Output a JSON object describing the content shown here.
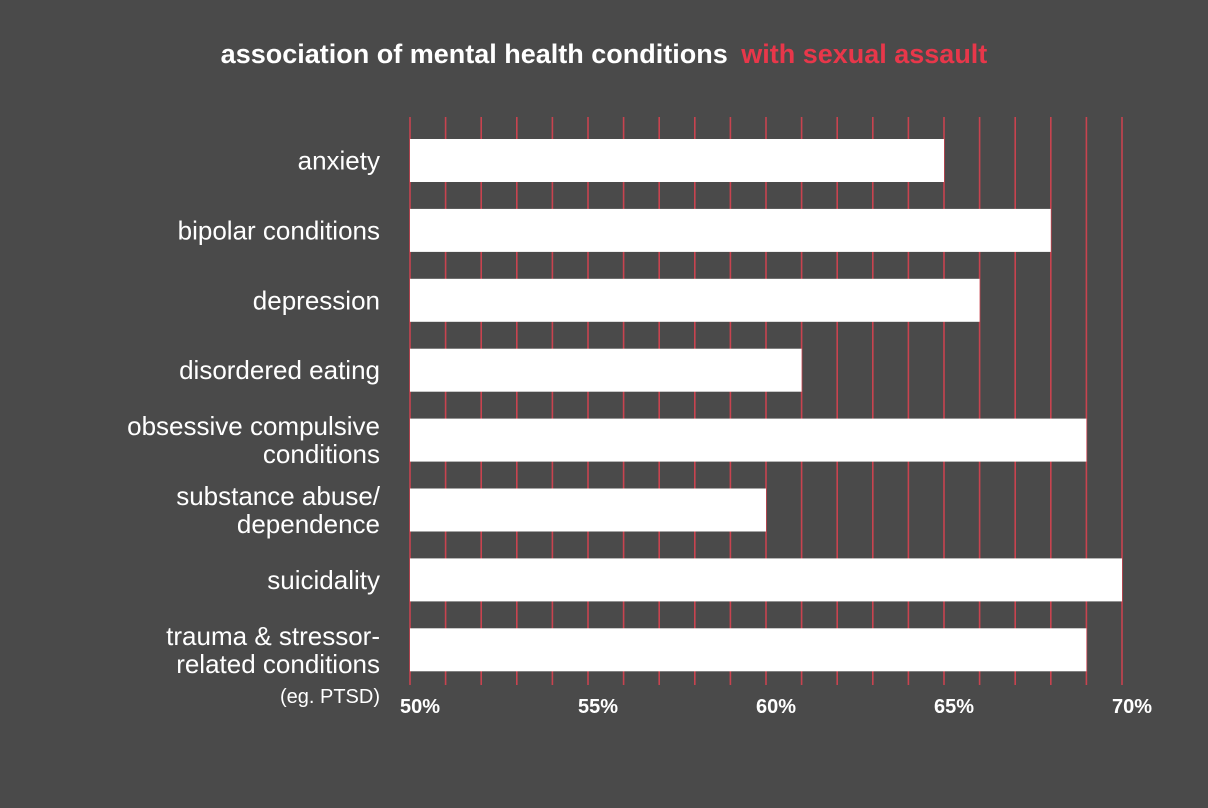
{
  "chart_data": {
    "type": "bar",
    "orientation": "horizontal",
    "title": "association of mental health conditions",
    "title_highlight": "with sexual assault",
    "categories": [
      [
        "anxiety"
      ],
      [
        "bipolar conditions"
      ],
      [
        "depression"
      ],
      [
        "disordered eating"
      ],
      [
        "obsessive compulsive",
        "conditions"
      ],
      [
        "substance abuse/",
        "dependence"
      ],
      [
        "suicidality"
      ],
      [
        "trauma & stressor-",
        "related conditions"
      ]
    ],
    "category_notes": [
      "",
      "",
      "",
      "",
      "",
      "",
      "",
      "(eg. PTSD)"
    ],
    "values": [
      65,
      68,
      66,
      61,
      69,
      60,
      70,
      69
    ],
    "xlim": [
      50,
      70
    ],
    "x_ticks": [
      50,
      55,
      60,
      65,
      70
    ],
    "x_tick_labels": [
      "50%",
      "55%",
      "60%",
      "65%",
      "70%"
    ],
    "minor_grid_step": 1,
    "grid": true,
    "colors": {
      "background": "#4a4a4a",
      "bar": "#ffffff",
      "grid": "#c8434f",
      "title": "#ffffff",
      "title_highlight": "#e8374a"
    }
  }
}
